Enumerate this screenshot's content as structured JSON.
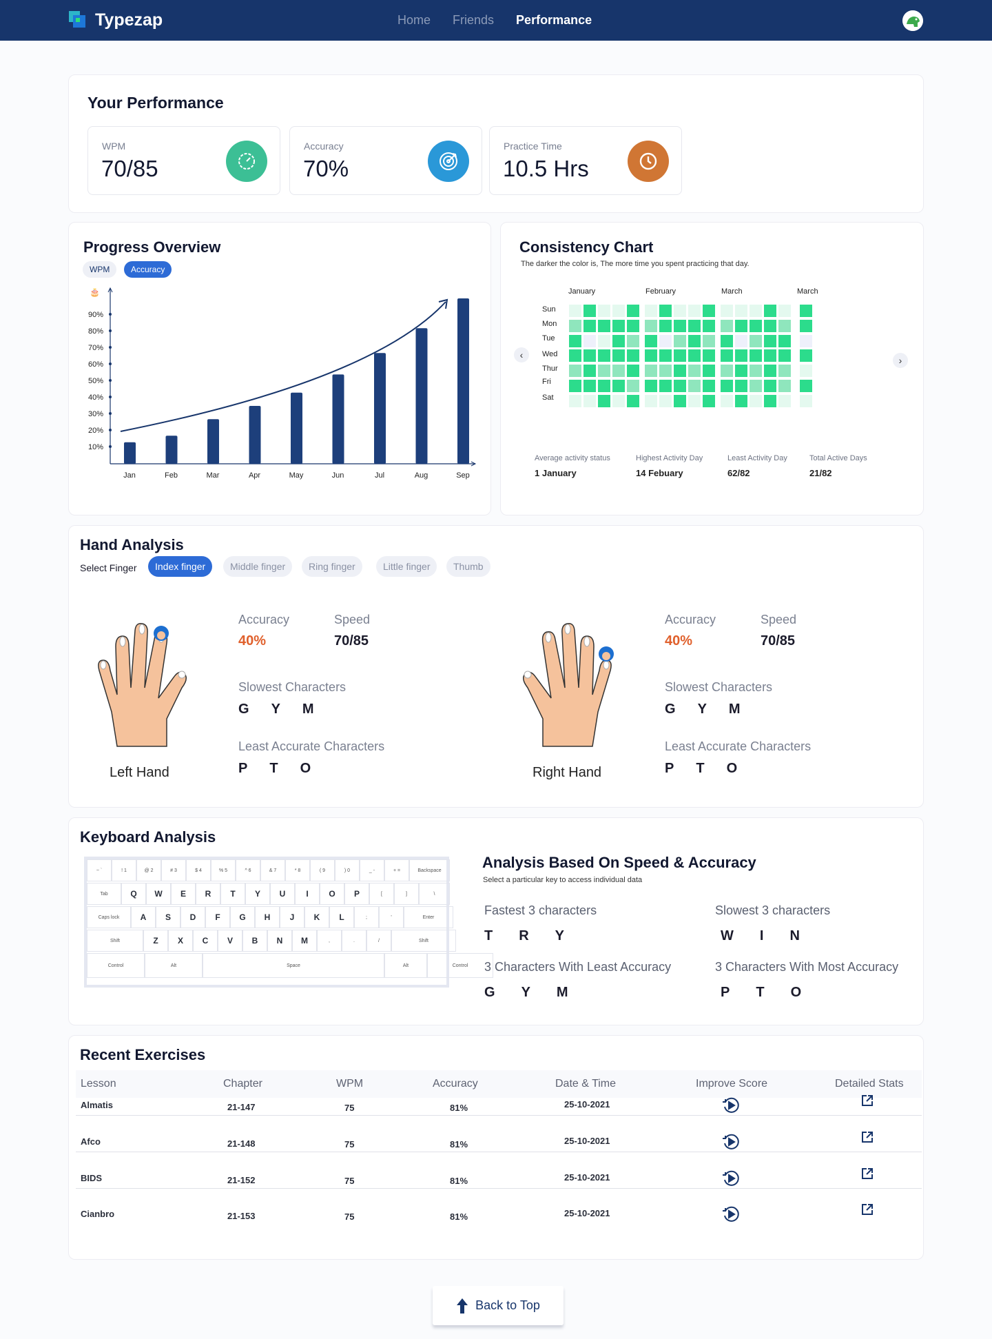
{
  "app": {
    "name": "Typezap",
    "nav": [
      "Home",
      "Friends",
      "Performance"
    ],
    "active_nav": "Performance"
  },
  "performance": {
    "title": "Your Performance",
    "stats": [
      {
        "label": "WPM",
        "value": "70/85",
        "color": "#3cbf95"
      },
      {
        "label": "Accuracy",
        "value": "70%",
        "color": "#2a98d8"
      },
      {
        "label": "Practice Time",
        "value": "10.5 Hrs",
        "color": "#d07634"
      }
    ]
  },
  "progress": {
    "title": "Progress Overview",
    "toggle": [
      "WPM",
      "Accuracy"
    ],
    "active_toggle": "Accuracy"
  },
  "chart_data": {
    "type": "bar",
    "title": "Progress Overview",
    "categories": [
      "Jan",
      "Feb",
      "Mar",
      "Apr",
      "May",
      "Jun",
      "Jul",
      "Aug",
      "Sep"
    ],
    "values": [
      13,
      17,
      27,
      35,
      43,
      54,
      67,
      82,
      100
    ],
    "yticks": [
      "10%",
      "20%",
      "30%",
      "40%",
      "50%",
      "60%",
      "70%",
      "80%",
      "90%"
    ],
    "ylim": [
      0,
      100
    ],
    "bar_color": "#1d3f7b",
    "trend": "exponential"
  },
  "consistency": {
    "title": "Consistency Chart",
    "subtitle": "The darker the color is, The more time you spent practicing that day.",
    "months": [
      "January",
      "February",
      "March",
      "March"
    ],
    "days": [
      "Sun",
      "Mon",
      "Tue",
      "Wed",
      "Thur",
      "Fri",
      "Sat"
    ],
    "grid": [
      [
        1,
        3,
        1,
        1,
        3,
        1,
        3,
        1,
        1,
        3,
        1,
        1,
        1,
        3,
        1,
        3
      ],
      [
        2,
        3,
        3,
        3,
        3,
        2,
        3,
        3,
        3,
        3,
        2,
        3,
        3,
        3,
        2,
        3
      ],
      [
        3,
        0,
        1,
        3,
        2,
        3,
        0,
        2,
        3,
        2,
        3,
        0,
        2,
        3,
        3,
        0
      ],
      [
        3,
        3,
        3,
        3,
        3,
        3,
        3,
        3,
        3,
        3,
        3,
        3,
        3,
        3,
        3,
        3
      ],
      [
        2,
        3,
        2,
        2,
        3,
        2,
        2,
        3,
        2,
        3,
        2,
        3,
        2,
        3,
        2,
        1
      ],
      [
        3,
        3,
        3,
        3,
        2,
        3,
        3,
        3,
        2,
        3,
        3,
        3,
        2,
        3,
        2,
        3
      ],
      [
        1,
        1,
        3,
        1,
        3,
        1,
        1,
        3,
        1,
        3,
        1,
        3,
        1,
        3,
        1,
        1
      ]
    ],
    "footer": [
      {
        "label": "Average activity status",
        "value": "1 January"
      },
      {
        "label": "Highest Activity Day",
        "value": "14 Febuary"
      },
      {
        "label": "Least Activity Day",
        "value": "62/82"
      },
      {
        "label": "Total Active Days",
        "value": "21/82"
      }
    ],
    "colors": [
      "#eef0fb",
      "#e4f9ef",
      "#8fe6bd",
      "#2cdc8c"
    ]
  },
  "hand": {
    "title": "Hand Analysis",
    "select_label": "Select Finger",
    "fingers": [
      "Index finger",
      "Middle finger",
      "Ring finger",
      "Little finger",
      "Thumb"
    ],
    "active_finger": "Index finger",
    "left": {
      "name": "Left Hand",
      "accuracy_label": "Accuracy",
      "accuracy": "40%",
      "speed_label": "Speed",
      "speed": "70/85",
      "slowest_label": "Slowest Characters",
      "slowest": [
        "G",
        "Y",
        "M"
      ],
      "least_label": "Least Accurate Characters",
      "least": [
        "P",
        "T",
        "O"
      ]
    },
    "right": {
      "name": "Right Hand",
      "accuracy_label": "Accuracy",
      "accuracy": "40%",
      "speed_label": "Speed",
      "speed": "70/85",
      "slowest_label": "Slowest Characters",
      "slowest": [
        "G",
        "Y",
        "M"
      ],
      "least_label": "Least Accurate Characters",
      "least": [
        "P",
        "T",
        "O"
      ]
    }
  },
  "keyboard": {
    "title": "Keyboard Analysis",
    "analysis_title": "Analysis Based On Speed & Accuracy",
    "analysis_sub": "Select a particular key to access individual data",
    "fastest_label": "Fastest 3 characters",
    "fastest": [
      "T",
      "R",
      "Y"
    ],
    "slowest_label": "Slowest 3 characters",
    "slowest": [
      "W",
      "I",
      "N"
    ],
    "least_label": "3 Characters With Least Accuracy",
    "least": [
      "G",
      "Y",
      "M"
    ],
    "most_label": "3 Characters With Most Accuracy",
    "most": [
      "P",
      "T",
      "O"
    ],
    "rows": [
      [
        "~ `",
        "! 1",
        "@ 2",
        "# 3",
        "$ 4",
        "% 5",
        "^ 6",
        "& 7",
        "* 8",
        "( 9",
        ") 0",
        "_ -",
        "+ =",
        "Backspace"
      ],
      [
        "Tab",
        "Q",
        "W",
        "E",
        "R",
        "T",
        "Y",
        "U",
        "I",
        "O",
        "P",
        "[",
        "]",
        "\\"
      ],
      [
        "Caps lock",
        "A",
        "S",
        "D",
        "F",
        "G",
        "H",
        "J",
        "K",
        "L",
        ";",
        "'",
        "Enter"
      ],
      [
        "Shift",
        "Z",
        "X",
        "C",
        "V",
        "B",
        "N",
        "M",
        ",",
        ".",
        "/",
        "Shift"
      ],
      [
        "Control",
        "Alt",
        "Space",
        "Alt",
        "Control"
      ]
    ]
  },
  "exercises": {
    "title": "Recent Exercises",
    "headers": [
      "Lesson",
      "Chapter",
      "WPM",
      "Accuracy",
      "Date & Time",
      "Improve Score",
      "Detailed Stats"
    ],
    "rows": [
      [
        "Almatis",
        "21-147",
        "75",
        "81%",
        "25-10-2021"
      ],
      [
        "Afco",
        "21-148",
        "75",
        "81%",
        "25-10-2021"
      ],
      [
        "BIDS",
        "21-152",
        "75",
        "81%",
        "25-10-2021"
      ],
      [
        "Cianbro",
        "21-153",
        "75",
        "81%",
        "25-10-2021"
      ]
    ]
  },
  "back_to_top": "Back to Top"
}
